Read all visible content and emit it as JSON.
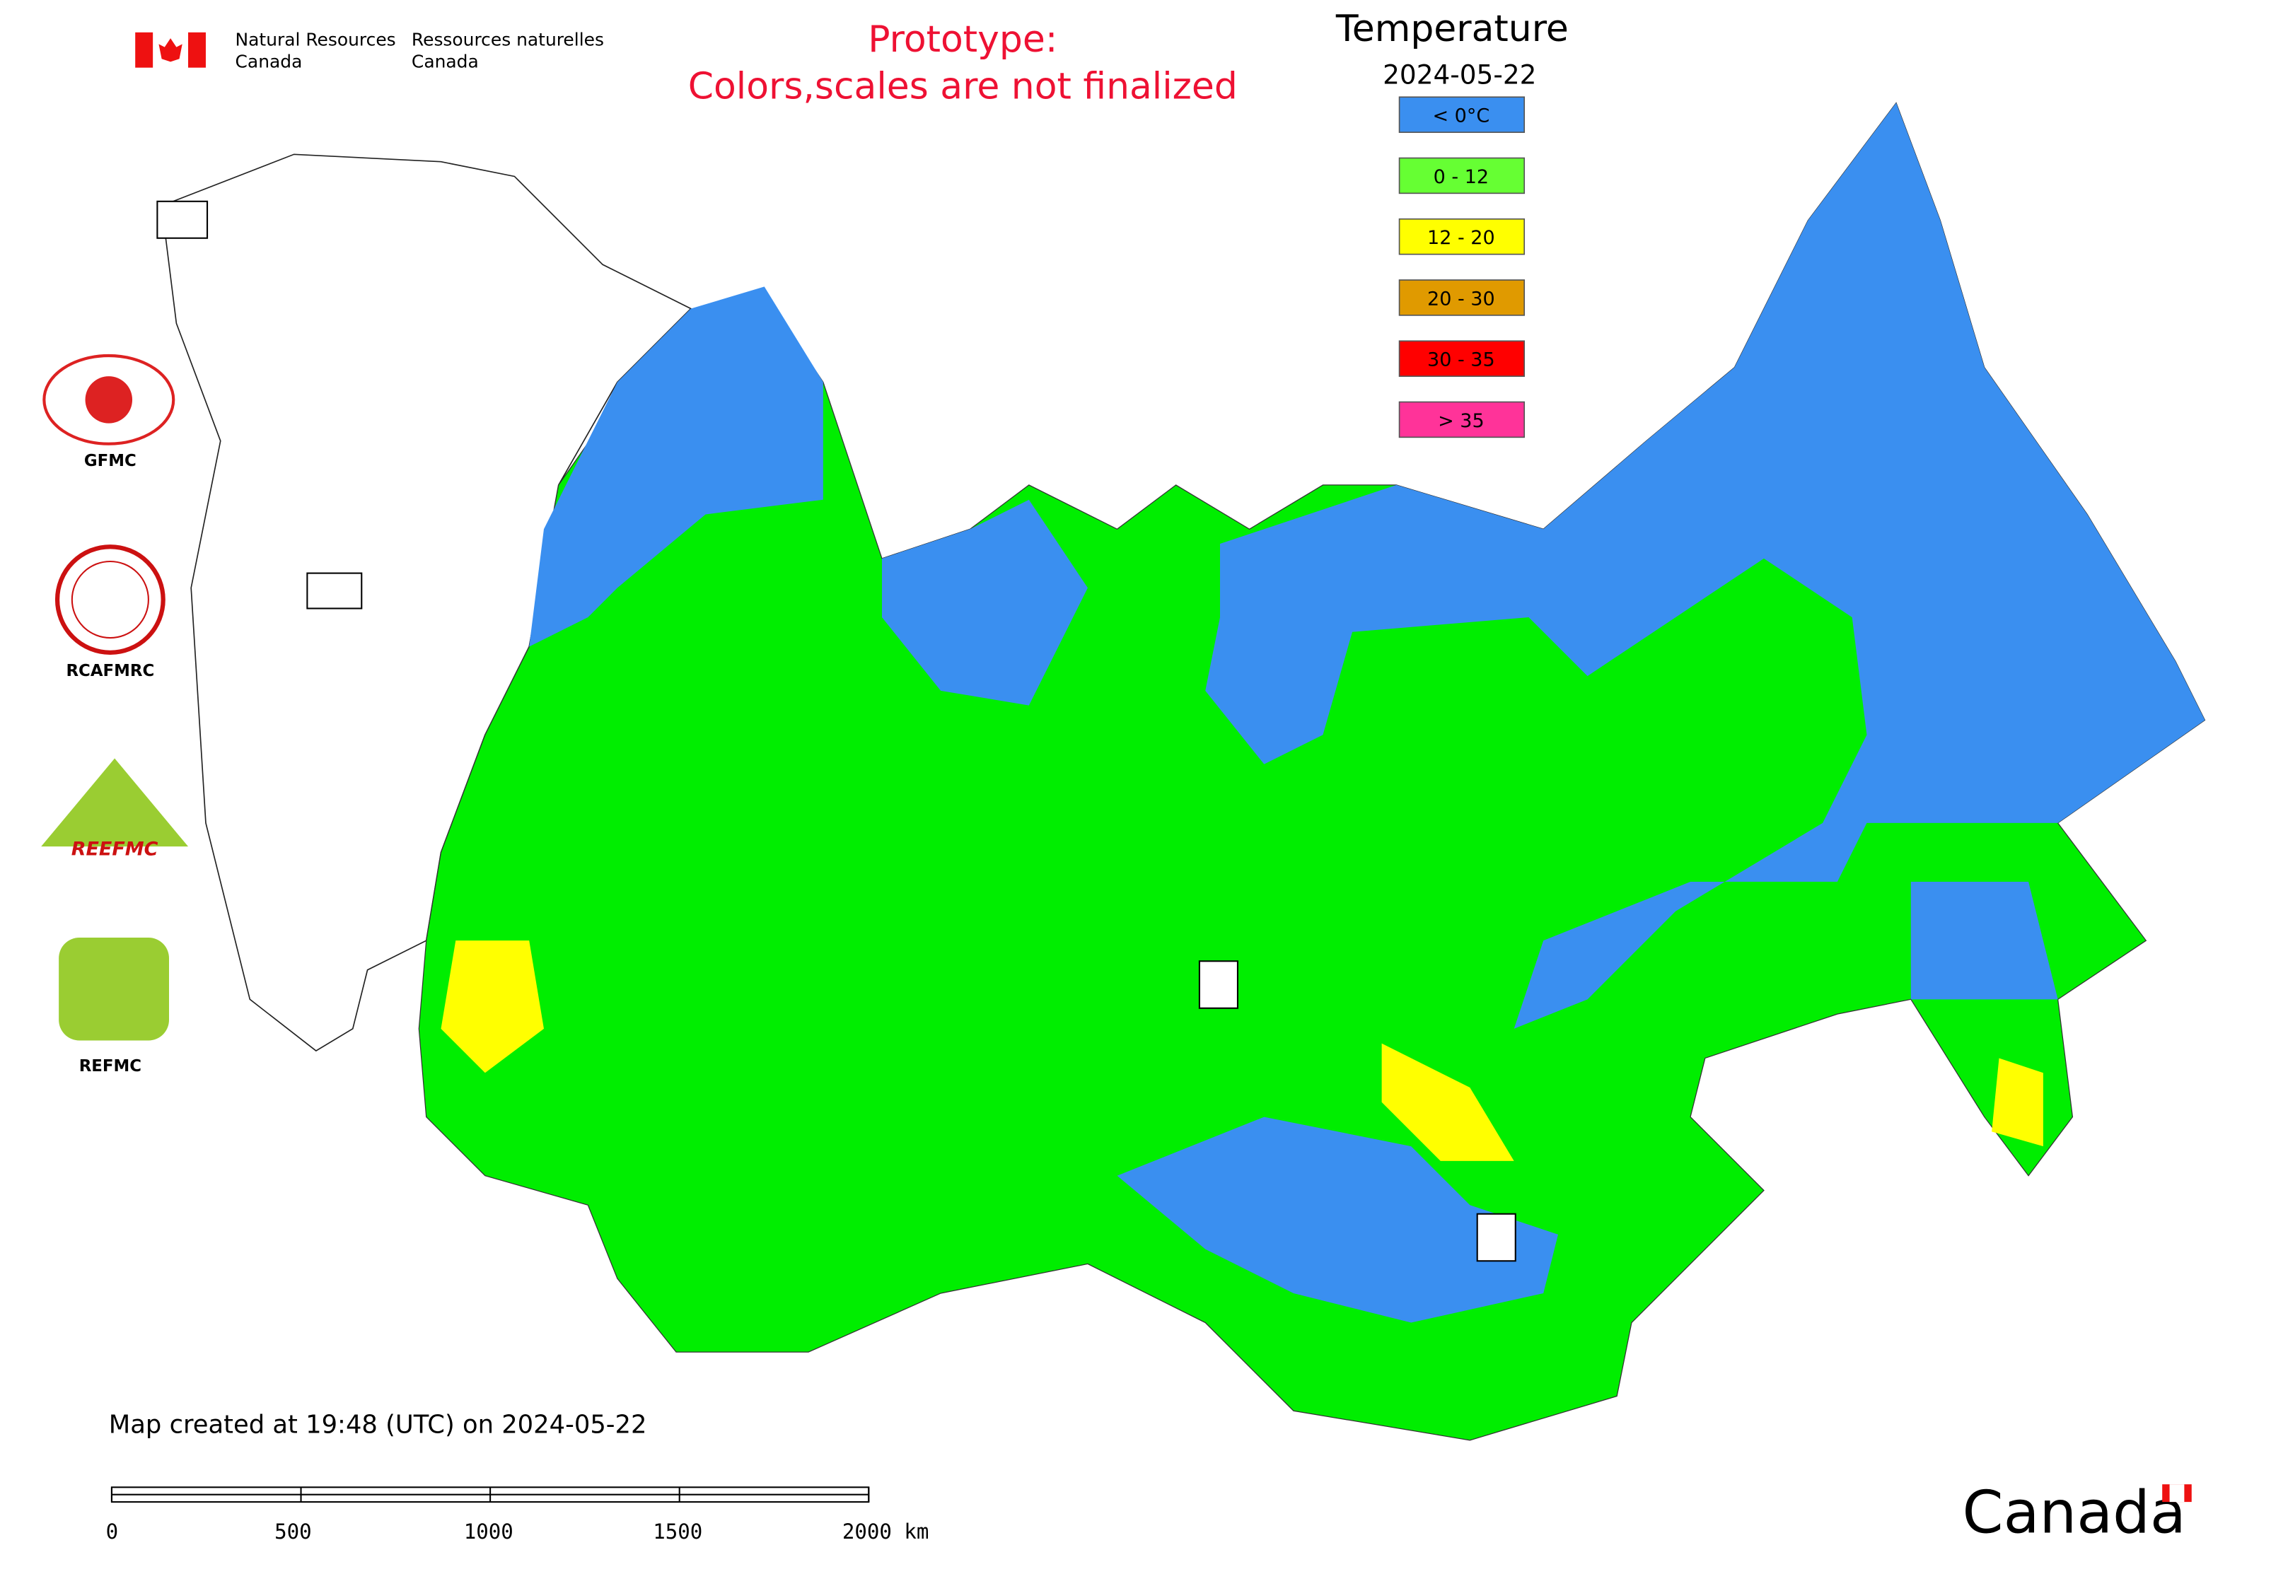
{
  "header": {
    "en_line1": "Natural Resources",
    "en_line2": "Canada",
    "fr_line1": "Ressources naturelles",
    "fr_line2": "Canada"
  },
  "notice": {
    "line1": "Prototype:",
    "line2": "Colors,scales are not finalized"
  },
  "legend": {
    "title": "Temperature",
    "date": "2024-05-22",
    "items": [
      {
        "label": "< 0°C",
        "color": "#3a8ff0"
      },
      {
        "label": "0 - 12",
        "color": "#66ff33"
      },
      {
        "label": "12 - 20",
        "color": "#ffff00"
      },
      {
        "label": "20 - 30",
        "color": "#e09a00"
      },
      {
        "label": "30 - 35",
        "color": "#ff0000"
      },
      {
        "label": "> 35",
        "color": "#ff3399"
      }
    ]
  },
  "logos": {
    "gfmc": "GFMC",
    "rcafmrc": "RCAFMRC",
    "reefmc": "REEFMC",
    "refmc": "REFMC"
  },
  "footer": {
    "created": "Map created at 19:48 (UTC) on 2024-05-22",
    "wordmark": "Canada"
  },
  "scale_bar": {
    "range": [
      0,
      2000
    ],
    "ticks": [
      0,
      500,
      1000,
      1500,
      {
        "value": 2000,
        "label": "2000 km"
      }
    ]
  }
}
